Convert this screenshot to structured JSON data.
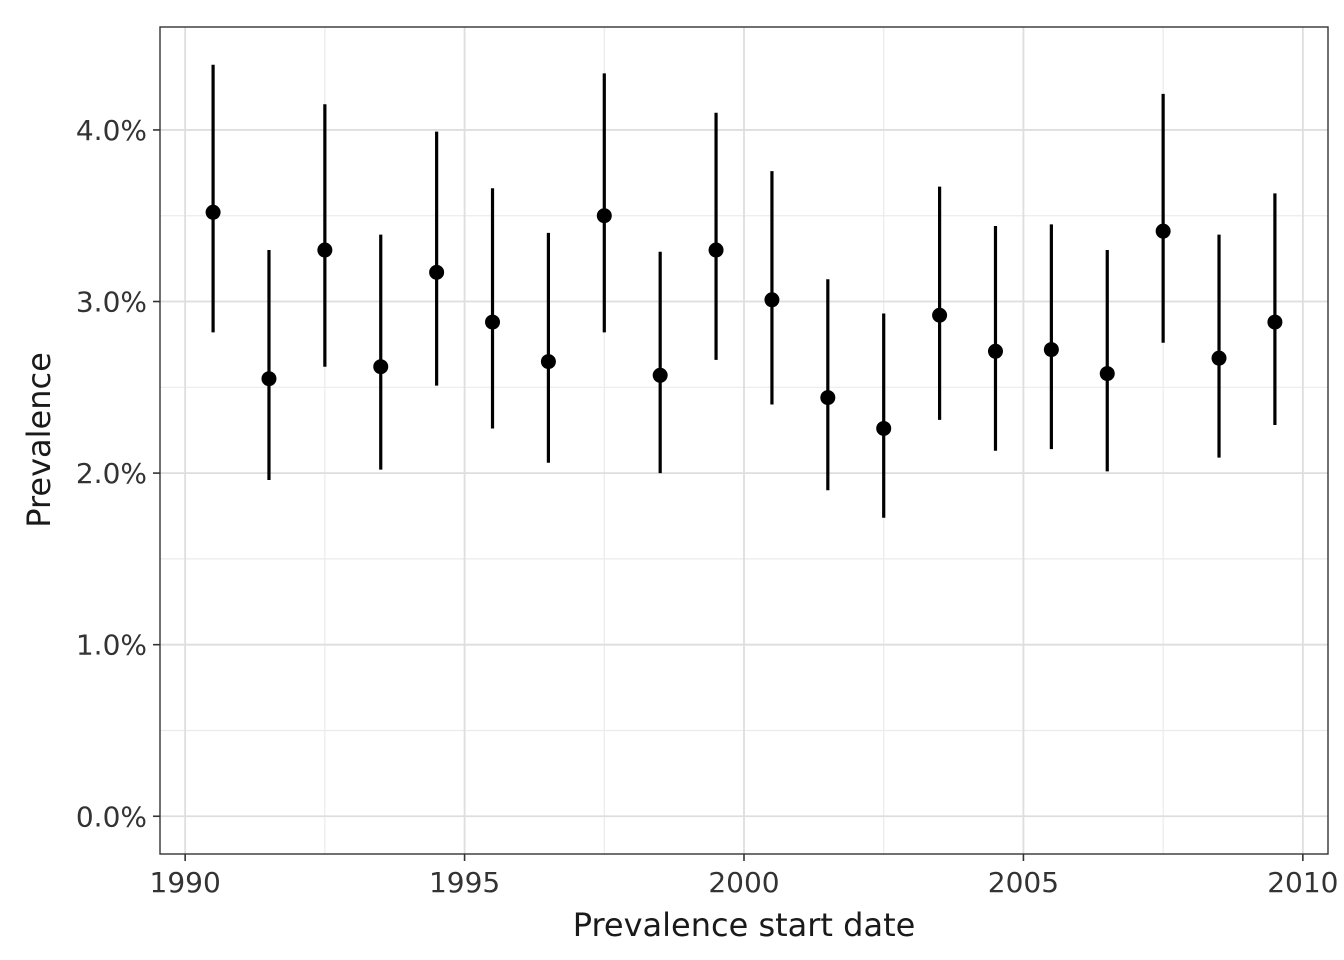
{
  "chart_data": {
    "type": "scatter",
    "xlabel": "Prevalence start date",
    "ylabel": "Prevalence",
    "xlim": [
      1989.55,
      2010.45
    ],
    "ylim": [
      -0.0022,
      0.046
    ],
    "x_ticks": [
      1990,
      1995,
      2000,
      2005,
      2010
    ],
    "x_tick_labels": [
      "1990",
      "1995",
      "2000",
      "2005",
      "2010"
    ],
    "y_ticks": [
      0.0,
      0.01,
      0.02,
      0.03,
      0.04
    ],
    "y_tick_labels": [
      "0.0%",
      "1.0%",
      "2.0%",
      "3.0%",
      "4.0%"
    ],
    "grid": true,
    "legend": "none",
    "point_color": "#000000",
    "series": [
      {
        "points": [
          {
            "x": 1990.5,
            "y": 0.0352,
            "lower": 0.0282,
            "upper": 0.0438
          },
          {
            "x": 1991.5,
            "y": 0.0255,
            "lower": 0.0196,
            "upper": 0.033
          },
          {
            "x": 1992.5,
            "y": 0.033,
            "lower": 0.0262,
            "upper": 0.0415
          },
          {
            "x": 1993.5,
            "y": 0.0262,
            "lower": 0.0202,
            "upper": 0.0339
          },
          {
            "x": 1994.5,
            "y": 0.0317,
            "lower": 0.0251,
            "upper": 0.0399
          },
          {
            "x": 1995.5,
            "y": 0.0288,
            "lower": 0.0226,
            "upper": 0.0366
          },
          {
            "x": 1996.5,
            "y": 0.0265,
            "lower": 0.0206,
            "upper": 0.034
          },
          {
            "x": 1997.5,
            "y": 0.035,
            "lower": 0.0282,
            "upper": 0.0433
          },
          {
            "x": 1998.5,
            "y": 0.0257,
            "lower": 0.02,
            "upper": 0.0329
          },
          {
            "x": 1999.5,
            "y": 0.033,
            "lower": 0.0266,
            "upper": 0.041
          },
          {
            "x": 2000.5,
            "y": 0.0301,
            "lower": 0.024,
            "upper": 0.0376
          },
          {
            "x": 2001.5,
            "y": 0.0244,
            "lower": 0.019,
            "upper": 0.0313
          },
          {
            "x": 2002.5,
            "y": 0.0226,
            "lower": 0.0174,
            "upper": 0.0293
          },
          {
            "x": 2003.5,
            "y": 0.0292,
            "lower": 0.0231,
            "upper": 0.0367
          },
          {
            "x": 2004.5,
            "y": 0.0271,
            "lower": 0.0213,
            "upper": 0.0344
          },
          {
            "x": 2005.5,
            "y": 0.0272,
            "lower": 0.0214,
            "upper": 0.0345
          },
          {
            "x": 2006.5,
            "y": 0.0258,
            "lower": 0.0201,
            "upper": 0.033
          },
          {
            "x": 2007.5,
            "y": 0.0341,
            "lower": 0.0276,
            "upper": 0.0421
          },
          {
            "x": 2008.5,
            "y": 0.0267,
            "lower": 0.0209,
            "upper": 0.0339
          },
          {
            "x": 2009.5,
            "y": 0.0288,
            "lower": 0.0228,
            "upper": 0.0363
          }
        ]
      }
    ]
  }
}
